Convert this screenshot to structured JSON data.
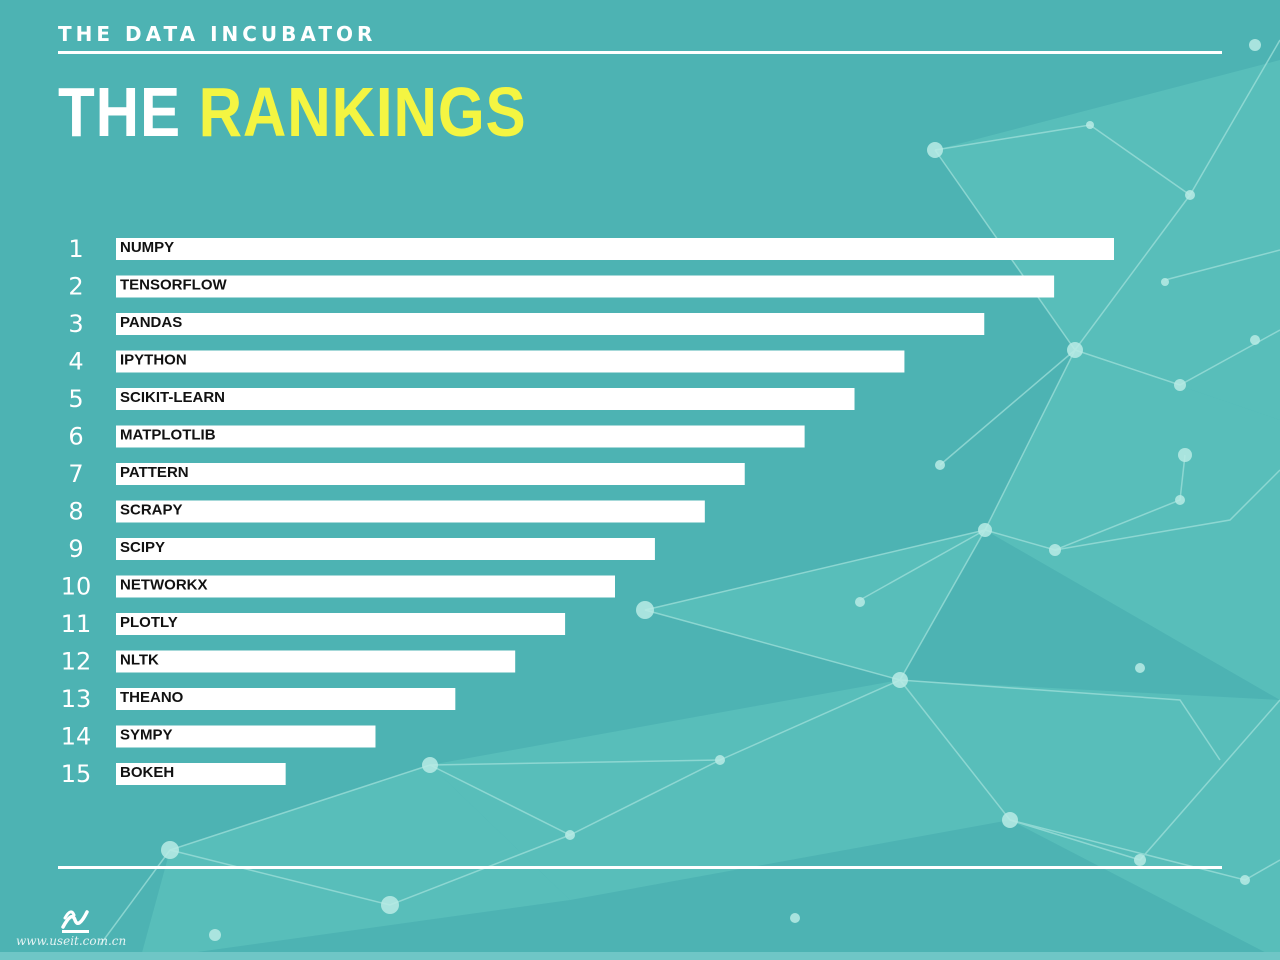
{
  "header": {
    "brand": "THE DATA INCUBATOR",
    "title_white": "THE",
    "title_yellow": "RANKINGS"
  },
  "footer": {
    "watermark": "www.useit.com.cn"
  },
  "colors": {
    "background": "#4db3b3",
    "accent_yellow": "#f4f542",
    "bar": "#ffffff"
  },
  "chart_data": {
    "type": "bar",
    "orientation": "horizontal",
    "categories": [
      "NUMPY",
      "TENSORFLOW",
      "PANDAS",
      "IPYTHON",
      "SCIKIT-LEARN",
      "MATPLOTLIB",
      "PATTERN",
      "SCRAPY",
      "SCIPY",
      "NETWORKX",
      "PLOTLY",
      "NLTK",
      "THEANO",
      "SYMPY",
      "BOKEH"
    ],
    "ranks": [
      "1",
      "2",
      "3",
      "4",
      "5",
      "6",
      "7",
      "8",
      "9",
      "10",
      "11",
      "12",
      "13",
      "14",
      "15"
    ],
    "values": [
      100,
      94,
      87,
      79,
      74,
      69,
      63,
      59,
      54,
      50,
      45,
      40,
      34,
      26,
      17
    ],
    "xlim": [
      0,
      100
    ],
    "grid": false,
    "legend": "none"
  }
}
